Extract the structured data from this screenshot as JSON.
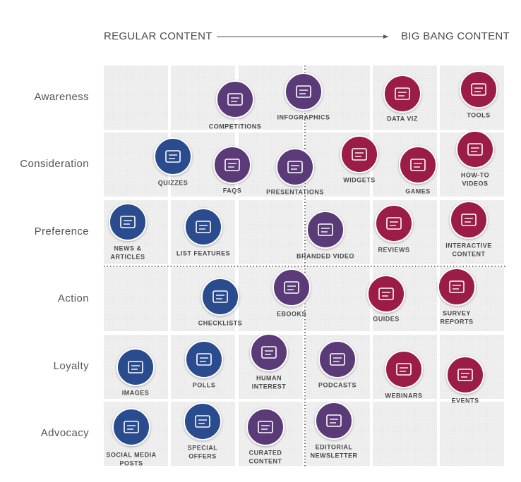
{
  "header": {
    "left": "REGULAR CONTENT",
    "right": "BIG BANG CONTENT"
  },
  "rows": [
    "Awareness",
    "Consideration",
    "Preference",
    "Action",
    "Loyalty",
    "Advocacy"
  ],
  "nodes": [
    {
      "label": [
        "COMPETITIONS"
      ]
    },
    {
      "label": [
        "INFOGRAPHICS"
      ]
    },
    {
      "label": [
        "DATA VIZ"
      ]
    },
    {
      "label": [
        "TOOLS"
      ]
    },
    {
      "label": [
        "QUIZZES"
      ]
    },
    {
      "label": [
        "FAQS"
      ]
    },
    {
      "label": [
        "PRESENTATIONS"
      ]
    },
    {
      "label": [
        "WIDGETS"
      ]
    },
    {
      "label": [
        "GAMES"
      ]
    },
    {
      "label": [
        "HOW-TO",
        "VIDEOS"
      ]
    },
    {
      "label": [
        "NEWS &",
        "ARTICLES"
      ]
    },
    {
      "label": [
        "LIST FEATURES"
      ]
    },
    {
      "label": [
        "BRANDED VIDEO"
      ]
    },
    {
      "label": [
        "REVIEWS"
      ]
    },
    {
      "label": [
        "INTERACTIVE",
        "CONTENT"
      ]
    },
    {
      "label": [
        "CHECKLISTS"
      ]
    },
    {
      "label": [
        "EBOOKS"
      ]
    },
    {
      "label": [
        "GUIDES"
      ]
    },
    {
      "label": [
        "SURVEY",
        "REPORTS"
      ]
    },
    {
      "label": [
        "IMAGES"
      ]
    },
    {
      "label": [
        "POLLS"
      ]
    },
    {
      "label": [
        "HUMAN",
        "INTEREST"
      ]
    },
    {
      "label": [
        "PODCASTS"
      ]
    },
    {
      "label": [
        "WEBINARS"
      ]
    },
    {
      "label": [
        "EVENTS"
      ]
    },
    {
      "label": [
        "SOCIAL MEDIA",
        "POSTS"
      ]
    },
    {
      "label": [
        "SPECIAL",
        "OFFERS"
      ]
    },
    {
      "label": [
        "CURATED",
        "CONTENT"
      ]
    },
    {
      "label": [
        "EDITORIAL",
        "NEWSLETTER"
      ]
    }
  ]
}
